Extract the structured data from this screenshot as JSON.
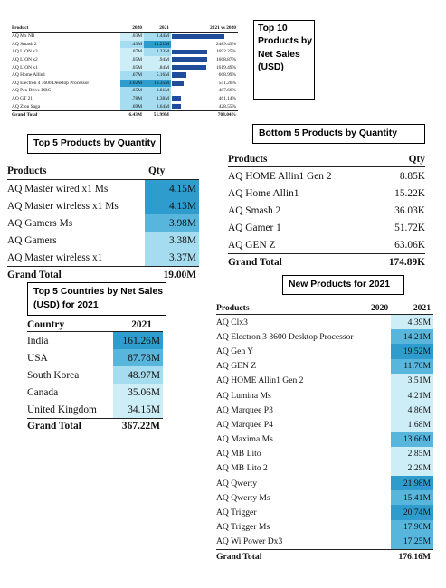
{
  "colors": {
    "q_dark": "#2e9ccd",
    "q_mid": "#58b6dc",
    "q_light": "#a6dcef",
    "q_pale": "#cdedf7",
    "bar": "#1f4d9a"
  },
  "top10": {
    "title": "Top 10 Products by Net Sales (USD)",
    "headers": {
      "product": "Product",
      "y2020": "2020",
      "y2021": "2021",
      "change": "2021 vs 2020"
    },
    "rows": [
      {
        "product": "AQ Mx NB",
        "y2020": ".03M",
        "y2021": "1.44M",
        "change": "",
        "bar": 1.0,
        "c20": 0.1,
        "c21": 0.6
      },
      {
        "product": "AQ Smash 2",
        "y2020": ".43M",
        "y2021": "11.21M",
        "change": "2489.49%",
        "bar": 0.0,
        "c20": 0.6,
        "c21": 1.0
      },
      {
        "product": "AQ LION x3",
        "y2020": ".07M",
        "y2021": "1.23M",
        "change": "1692.25%",
        "bar": 0.68,
        "c20": 0.1,
        "c21": 0.6
      },
      {
        "product": "AQ LION x2",
        "y2020": ".05M",
        "y2021": ".94M",
        "change": "1668.87%",
        "bar": 0.67,
        "c20": 0.1,
        "c21": 0.5
      },
      {
        "product": "AQ LION x1",
        "y2020": ".05M",
        "y2021": ".84M",
        "change": "1619.49%",
        "bar": 0.65,
        "c20": 0.1,
        "c21": 0.5
      },
      {
        "product": "AQ Home Allin1",
        "y2020": ".67M",
        "y2021": "5.16M",
        "change": "668.99%",
        "bar": 0.27,
        "c20": 0.4,
        "c21": 0.7
      },
      {
        "product": "AQ Electron 4 3600 Desktop Processor",
        "y2020": "3.02M",
        "y2021": "19.35M",
        "change": "541.26%",
        "bar": 0.22,
        "c20": 1.0,
        "c21": 1.0
      },
      {
        "product": "AQ Pen Drive DRC",
        "y2020": ".65M",
        "y2021": "3.81M",
        "change": "487.66%",
        "bar": 0.0,
        "c20": 0.3,
        "c21": 0.6
      },
      {
        "product": "AQ GT 21",
        "y2020": ".78M",
        "y2021": "4.38M",
        "change": "461.14%",
        "bar": 0.18,
        "c20": 0.3,
        "c21": 0.6
      },
      {
        "product": "AQ Zion Saga",
        "y2020": ".69M",
        "y2021": "3.64M",
        "change": "428.55%",
        "bar": 0.17,
        "c20": 0.3,
        "c21": 0.6
      }
    ],
    "total": {
      "label": "Grand Total",
      "y2020": "6.43M",
      "y2021": "51.99M",
      "change": "708.04%"
    }
  },
  "top5qty": {
    "title": "Top 5 Products by Quantity",
    "headers": {
      "product": "Products",
      "qty": "Qty"
    },
    "rows": [
      {
        "product": "AQ Master wired x1 Ms",
        "qty": "4.15M",
        "shade": "dark"
      },
      {
        "product": "AQ Master wireless x1 Ms",
        "qty": "4.13M",
        "shade": "dark"
      },
      {
        "product": "AQ Gamers Ms",
        "qty": "3.98M",
        "shade": "mid"
      },
      {
        "product": "AQ Gamers",
        "qty": "3.38M",
        "shade": "light"
      },
      {
        "product": "AQ Master wireless x1",
        "qty": "3.37M",
        "shade": "light"
      }
    ],
    "total": {
      "label": "Grand Total",
      "qty": "19.00M"
    }
  },
  "bottom5qty": {
    "title": "Bottom 5 Products by Quantity",
    "headers": {
      "product": "Products",
      "qty": "Qty"
    },
    "rows": [
      {
        "product": "AQ HOME Allin1 Gen 2",
        "qty": "8.85K"
      },
      {
        "product": "AQ Home Allin1",
        "qty": "15.22K"
      },
      {
        "product": "AQ Smash 2",
        "qty": "36.03K"
      },
      {
        "product": "AQ Gamer 1",
        "qty": "51.72K"
      },
      {
        "product": "AQ GEN Z",
        "qty": "63.06K"
      }
    ],
    "total": {
      "label": "Grand Total",
      "qty": "174.89K"
    }
  },
  "countries": {
    "title": "Top 5 Countries by Net Sales (USD) for 2021",
    "headers": {
      "country": "Country",
      "year": "2021"
    },
    "rows": [
      {
        "country": "India",
        "value": "161.26M",
        "shade": "dark"
      },
      {
        "country": "USA",
        "value": "87.78M",
        "shade": "mid"
      },
      {
        "country": "South Korea",
        "value": "48.97M",
        "shade": "light"
      },
      {
        "country": "Canada",
        "value": "35.06M",
        "shade": "pale"
      },
      {
        "country": "United Kingdom",
        "value": "34.15M",
        "shade": "pale"
      }
    ],
    "total": {
      "label": "Grand Total",
      "value": "367.22M"
    }
  },
  "newproducts": {
    "title": "New Products for 2021",
    "headers": {
      "product": "Products",
      "y2020": "2020",
      "y2021": "2021"
    },
    "rows": [
      {
        "product": "AQ Clx3",
        "value": "4.39M",
        "shade": "pale"
      },
      {
        "product": "AQ Electron 3 3600 Desktop Processor",
        "value": "14.21M",
        "shade": "mid"
      },
      {
        "product": "AQ Gen Y",
        "value": "19.52M",
        "shade": "dark"
      },
      {
        "product": "AQ GEN Z",
        "value": "11.70M",
        "shade": "mid"
      },
      {
        "product": "AQ HOME Allin1 Gen 2",
        "value": "3.51M",
        "shade": "pale"
      },
      {
        "product": "AQ Lumina Ms",
        "value": "4.21M",
        "shade": "pale"
      },
      {
        "product": "AQ Marquee P3",
        "value": "4.86M",
        "shade": "pale"
      },
      {
        "product": "AQ Marquee P4",
        "value": "1.68M",
        "shade": "pale"
      },
      {
        "product": "AQ Maxima Ms",
        "value": "13.66M",
        "shade": "mid"
      },
      {
        "product": "AQ MB Lito",
        "value": "2.85M",
        "shade": "pale"
      },
      {
        "product": "AQ MB Lito 2",
        "value": "2.29M",
        "shade": "pale"
      },
      {
        "product": "AQ Qwerty",
        "value": "21.98M",
        "shade": "dark"
      },
      {
        "product": "AQ Qwerty Ms",
        "value": "15.41M",
        "shade": "mid"
      },
      {
        "product": "AQ Trigger",
        "value": "20.74M",
        "shade": "dark"
      },
      {
        "product": "AQ Trigger Ms",
        "value": "17.90M",
        "shade": "mid"
      },
      {
        "product": "AQ Wi Power Dx3",
        "value": "17.25M",
        "shade": "mid"
      }
    ],
    "total": {
      "label": "Grand Total",
      "value": "176.16M"
    }
  }
}
